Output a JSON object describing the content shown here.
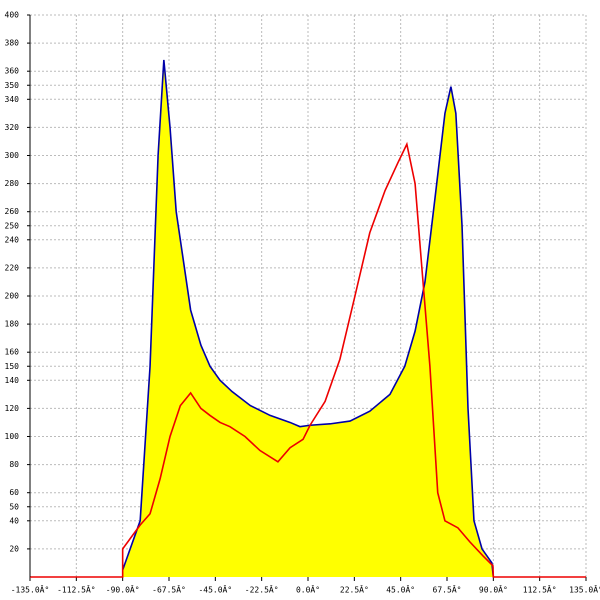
{
  "chart_data": {
    "type": "area",
    "xlim": [
      -135,
      135
    ],
    "xticks": [
      {
        "value": -135,
        "label": "-135.0Â°"
      },
      {
        "value": -112.5,
        "label": "-112.5Â°"
      },
      {
        "value": -90,
        "label": "-90.0Â°"
      },
      {
        "value": -67.5,
        "label": "-67.5Â°"
      },
      {
        "value": -45,
        "label": "-45.0Â°"
      },
      {
        "value": -22.5,
        "label": "-22.5Â°"
      },
      {
        "value": 0,
        "label": "0.0Â°"
      },
      {
        "value": 22.5,
        "label": "22.5Â°"
      },
      {
        "value": 45,
        "label": "45.0Â°"
      },
      {
        "value": 67.5,
        "label": "67.5Â°"
      },
      {
        "value": 90,
        "label": "90.0Â°"
      },
      {
        "value": 112.5,
        "label": "112.5Â°"
      },
      {
        "value": 135,
        "label": "135.0Â°"
      }
    ],
    "ylim": [
      0,
      400
    ],
    "yticks": [
      20,
      40,
      50,
      60,
      80,
      100,
      120,
      140,
      150,
      160,
      180,
      200,
      220,
      240,
      250,
      260,
      280,
      300,
      320,
      340,
      350,
      360,
      380,
      400
    ],
    "grid": true,
    "series": [
      {
        "color": "#0000aa",
        "fill": "#ffff00",
        "x": [
          -90,
          -81.5,
          -76.7,
          -72.8,
          -70,
          -67,
          -64,
          -61,
          -57,
          -52,
          -47.6,
          -42.7,
          -36.9,
          -28,
          -18.4,
          -8.7,
          -3.9,
          1,
          10.7,
          20.4,
          30,
          39.8,
          47,
          52,
          56.8,
          61.7,
          66.5,
          69.4,
          71.8,
          74.8,
          77.7,
          80.6,
          84.5,
          89.3,
          90
        ],
        "values": [
          5,
          40,
          150,
          300,
          368,
          320,
          260,
          230,
          190,
          165,
          150,
          140,
          132,
          122,
          115,
          110,
          107,
          108,
          109,
          111,
          118,
          130,
          150,
          175,
          210,
          270,
          330,
          349,
          330,
          250,
          120,
          40,
          20,
          10,
          0
        ]
      },
      {
        "color": "#ee0000",
        "x": [
          -135,
          -90,
          -90,
          -86,
          -81.5,
          -76.7,
          -71.8,
          -67,
          -62,
          -57,
          -52,
          -47.6,
          -42.7,
          -37.9,
          -30.6,
          -23.3,
          -14.6,
          -8.7,
          -2.4,
          1,
          8.3,
          15.5,
          22.8,
          30,
          37.4,
          43.7,
          48,
          52,
          55.3,
          59.2,
          63,
          66.5,
          72.8,
          78.6,
          85,
          89.8,
          90,
          135
        ],
        "values": [
          0,
          0,
          20,
          28,
          37,
          45,
          70,
          100,
          122,
          131,
          120,
          115,
          110,
          107,
          100,
          90,
          82,
          92,
          98,
          108,
          125,
          155,
          200,
          245,
          275,
          295,
          308,
          280,
          220,
          150,
          60,
          40,
          35,
          25,
          15,
          8,
          0,
          0
        ]
      }
    ]
  }
}
